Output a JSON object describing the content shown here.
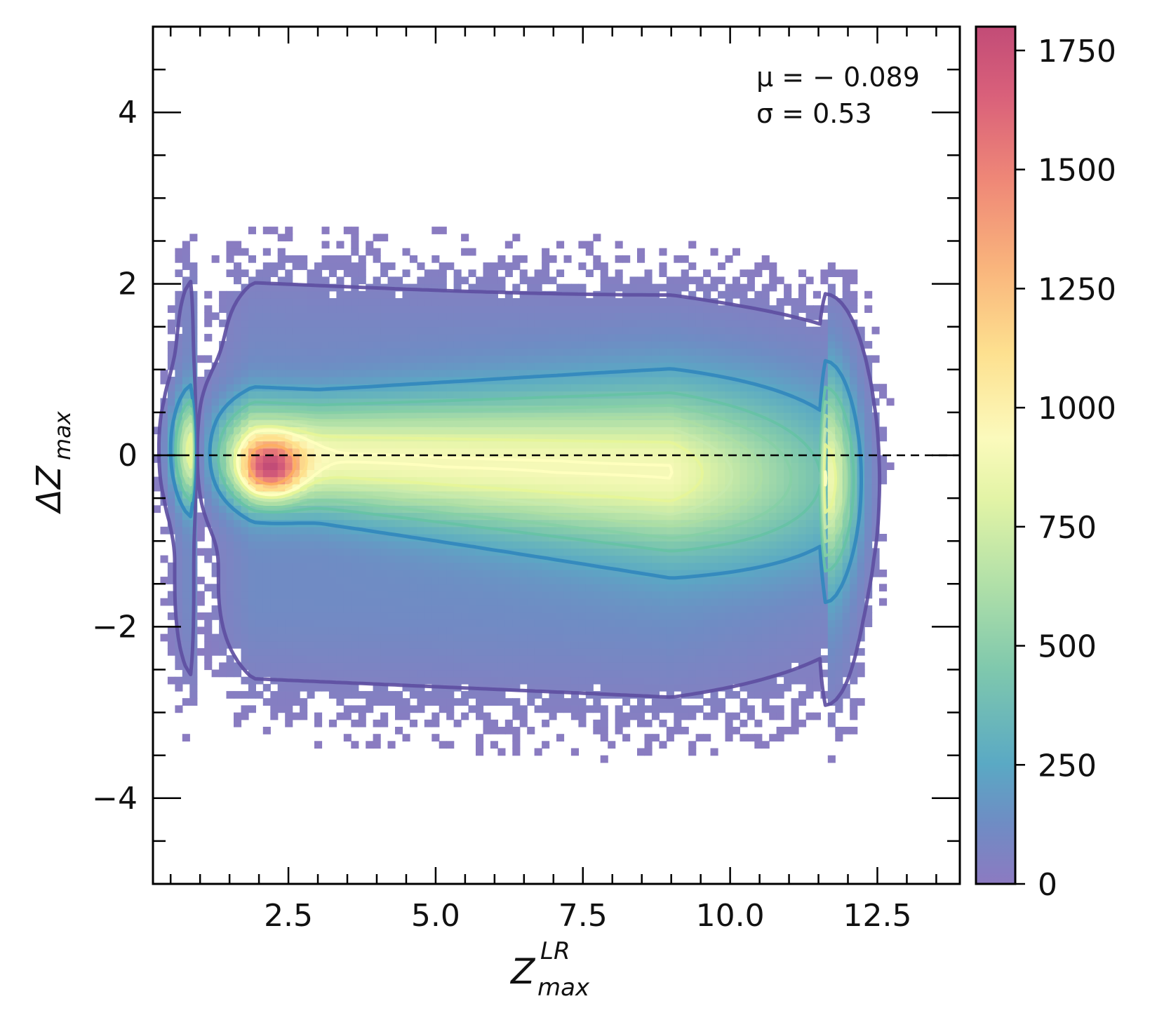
{
  "chart_data": {
    "type": "heatmap",
    "title": "",
    "xlabel": {
      "main": "Z",
      "superscript": "LR",
      "subscript": "max"
    },
    "ylabel": {
      "prefix": "ΔZ",
      "subscript": "max"
    },
    "xlim": [
      0.2,
      13.9
    ],
    "ylim": [
      -5.0,
      5.0
    ],
    "x_ticks": [
      2.5,
      5.0,
      7.5,
      10.0,
      12.5
    ],
    "x_tick_labels": [
      "2.5",
      "5.0",
      "7.5",
      "10.0",
      "12.5"
    ],
    "y_ticks": [
      -4,
      -2,
      0,
      2,
      4
    ],
    "y_tick_labels": [
      "−4",
      "−2",
      "0",
      "2",
      "4"
    ],
    "reference_line": {
      "y": 0,
      "style": "dashed"
    },
    "annotations": {
      "mu": "μ = − 0.089",
      "sigma": "σ = 0.53"
    },
    "colorbar": {
      "range": [
        0,
        1800
      ],
      "ticks": [
        0,
        250,
        500,
        750,
        1000,
        1250,
        1500,
        1750
      ],
      "tick_labels": [
        "0",
        "250",
        "500",
        "750",
        "1000",
        "1250",
        "1500",
        "1750"
      ],
      "colormap": "Spectral_r"
    },
    "density_model": {
      "peak": {
        "x": 2.2,
        "y": -0.15,
        "count": 1800
      },
      "ridge_center_y": -0.1,
      "x_support": [
        0.9,
        11.6
      ]
    },
    "contour_levels": [
      50,
      250,
      400,
      500,
      600,
      700,
      800,
      900,
      1100,
      1350
    ],
    "contour_colors": [
      "#5e4fa2",
      "#3288bd",
      "#66c2a5",
      "#86cfa5",
      "#abdda4",
      "#c7e9ad",
      "#e6f598",
      "#ffffbf",
      "#fee08b",
      "#fdae61"
    ]
  }
}
